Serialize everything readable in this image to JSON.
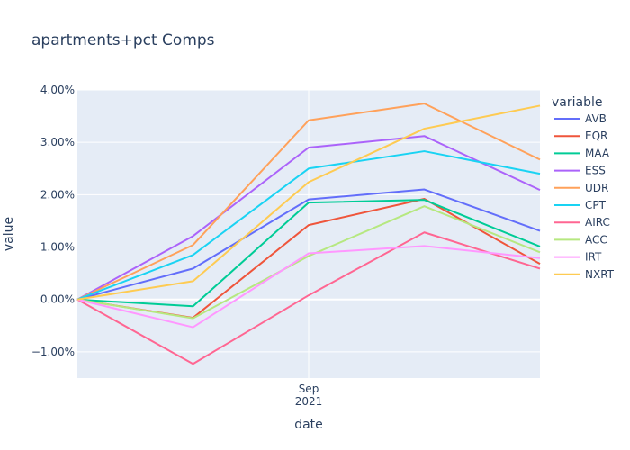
{
  "chart_data": {
    "type": "line",
    "title": "apartments+pct Comps",
    "xlabel": "date",
    "ylabel": "value",
    "x_tick_labels": [
      {
        "line1": "Sep",
        "line2": "2021"
      }
    ],
    "y_tick_labels": [
      "−1.00%",
      "0.00%",
      "1.00%",
      "2.00%",
      "3.00%",
      "4.00%"
    ],
    "y_ticks": [
      -0.01,
      0,
      0.01,
      0.02,
      0.03,
      0.04
    ],
    "ylim": [
      -0.015,
      0.04
    ],
    "x_point_count": 5,
    "x_tick_at_index": 2,
    "legend_title": "variable",
    "legend_position": "right",
    "grid": true,
    "plot_bg": "#e5ecf6",
    "series": [
      {
        "name": "AVB",
        "color": "#636efa",
        "values": [
          0,
          0.0059,
          0.0191,
          0.021,
          0.0131
        ]
      },
      {
        "name": "EQR",
        "color": "#ef553b",
        "values": [
          0,
          -0.0035,
          0.0142,
          0.0192,
          0.0068
        ]
      },
      {
        "name": "MAA",
        "color": "#00cc96",
        "values": [
          0,
          -0.0013,
          0.0185,
          0.019,
          0.0101
        ]
      },
      {
        "name": "ESS",
        "color": "#ab63fa",
        "values": [
          0,
          0.0121,
          0.029,
          0.0312,
          0.0209
        ]
      },
      {
        "name": "UDR",
        "color": "#ffa15a",
        "values": [
          0,
          0.0104,
          0.0342,
          0.0374,
          0.0267
        ]
      },
      {
        "name": "CPT",
        "color": "#19d3f3",
        "values": [
          0,
          0.0085,
          0.025,
          0.0283,
          0.024
        ]
      },
      {
        "name": "AIRC",
        "color": "#ff6692",
        "values": [
          0,
          -0.0123,
          0.0008,
          0.0128,
          0.0059
        ]
      },
      {
        "name": "ACC",
        "color": "#b6e880",
        "values": [
          0,
          -0.0036,
          0.0083,
          0.0178,
          0.009
        ]
      },
      {
        "name": "IRT",
        "color": "#ff97ff",
        "values": [
          0,
          -0.0053,
          0.0088,
          0.0102,
          0.0079
        ]
      },
      {
        "name": "NXRT",
        "color": "#fecb52",
        "values": [
          0,
          0.0035,
          0.0224,
          0.0326,
          0.037
        ]
      }
    ]
  }
}
